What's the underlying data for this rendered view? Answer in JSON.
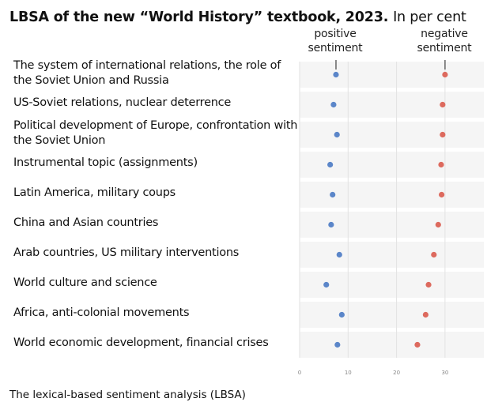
{
  "chart_data": {
    "type": "scatter",
    "title": "LBSA of the new “World History” textbook, 2023.",
    "subtitle": "In per cent",
    "annotations": {
      "positive": "positive sentiment",
      "negative": "negative sentiment"
    },
    "xlim": [
      0,
      38
    ],
    "x_ticks": [
      0,
      10,
      20,
      30
    ],
    "grid": true,
    "categories": [
      "The system of international relations, the role of the Soviet Union and Russia",
      "US-Soviet relations, nuclear deterrence",
      "Political development of Europe, confrontation with the Soviet Union",
      "Instrumental topic (assignments)",
      "Latin America, military coups",
      "China and Asian countries",
      "Arab countries, US military interventions",
      "World culture and science",
      "Africa, anti-colonial movements",
      "World economic development, financial crises"
    ],
    "series": [
      {
        "key": "positive",
        "color": "#5b86c9",
        "values": [
          7.5,
          7.0,
          7.7,
          6.3,
          6.8,
          6.5,
          8.2,
          5.5,
          8.7,
          7.8
        ]
      },
      {
        "key": "negative",
        "color": "#dd6a5e",
        "values": [
          30.0,
          29.5,
          29.5,
          29.2,
          29.3,
          28.6,
          27.7,
          26.6,
          26.0,
          24.3
        ]
      }
    ]
  },
  "footer": "The lexical-based sentiment analysis (LBSA)"
}
